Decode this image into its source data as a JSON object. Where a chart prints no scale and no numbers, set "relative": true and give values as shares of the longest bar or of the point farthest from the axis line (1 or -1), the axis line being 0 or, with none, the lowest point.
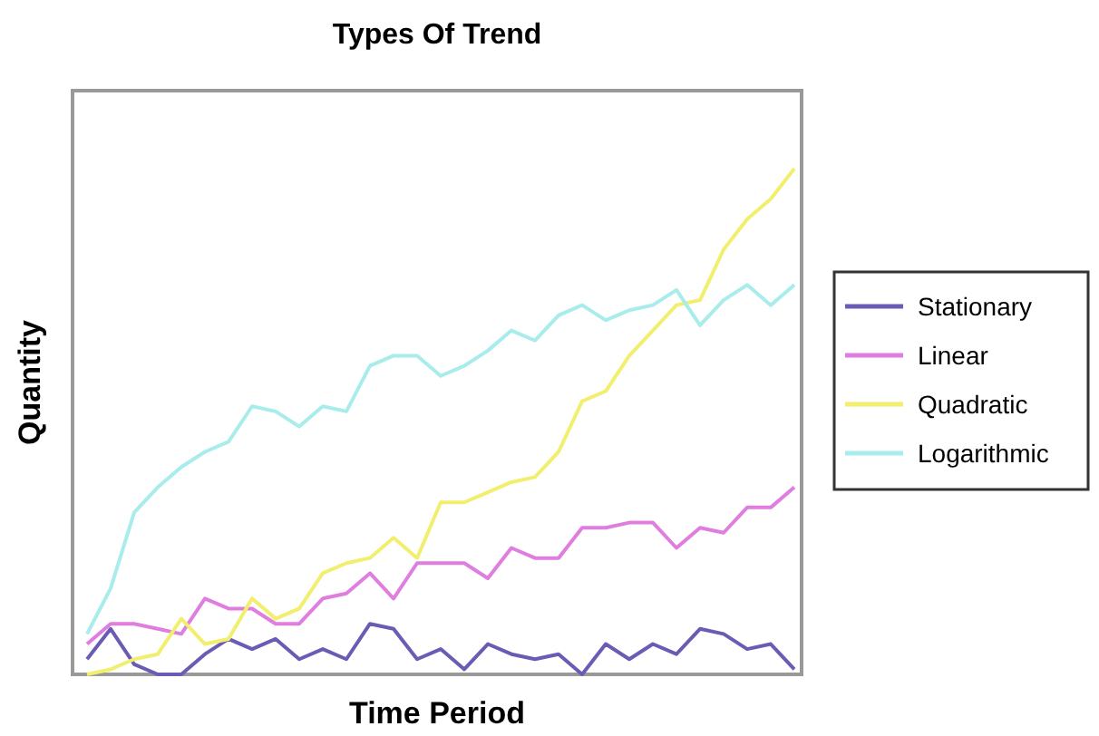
{
  "chart_data": {
    "type": "line",
    "title": "Types Of Trend",
    "xlabel": "Time Period",
    "ylabel": "Quantity",
    "relative": true,
    "legend": "right",
    "marker": "none",
    "line_style": "solid",
    "categories": [
      null,
      null,
      null,
      null,
      null,
      null,
      null,
      null,
      null,
      null,
      null,
      null,
      null,
      null,
      null,
      null,
      null,
      null,
      null,
      null,
      null,
      null,
      null,
      null,
      null,
      null,
      null,
      null,
      null,
      null,
      null
    ],
    "series": [
      {
        "name": "Stationary",
        "color": "#6b5bb5",
        "values": [
          0.03,
          0.09,
          0.02,
          0,
          0,
          0.04,
          0.07,
          0.05,
          0.07,
          0.03,
          0.05,
          0.03,
          0.1,
          0.09,
          0.03,
          0.05,
          0.01,
          0.06,
          0.04,
          0.03,
          0.04,
          0,
          0.06,
          0.03,
          0.06,
          0.04,
          0.09,
          0.08,
          0.05,
          0.06,
          0.01
        ]
      },
      {
        "name": "Linear",
        "color": "#e07ee0",
        "values": [
          0.06,
          0.1,
          0.1,
          0.09,
          0.08,
          0.15,
          0.13,
          0.13,
          0.1,
          0.1,
          0.15,
          0.16,
          0.2,
          0.15,
          0.22,
          0.22,
          0.22,
          0.19,
          0.25,
          0.23,
          0.23,
          0.29,
          0.29,
          0.3,
          0.3,
          0.25,
          0.29,
          0.28,
          0.33,
          0.33,
          0.37
        ]
      },
      {
        "name": "Quadratic",
        "color": "#f2ee6e",
        "values": [
          0,
          0.01,
          0.03,
          0.04,
          0.11,
          0.06,
          0.07,
          0.15,
          0.11,
          0.13,
          0.2,
          0.22,
          0.23,
          0.27,
          0.23,
          0.34,
          0.34,
          0.36,
          0.38,
          0.39,
          0.44,
          0.54,
          0.56,
          0.63,
          0.68,
          0.73,
          0.74,
          0.84,
          0.9,
          0.94,
          1
        ]
      },
      {
        "name": "Logarithmic",
        "color": "#a8ecec",
        "values": [
          0.08,
          0.17,
          0.32,
          0.37,
          0.41,
          0.44,
          0.46,
          0.53,
          0.52,
          0.49,
          0.53,
          0.52,
          0.61,
          0.63,
          0.63,
          0.59,
          0.61,
          0.64,
          0.68,
          0.66,
          0.71,
          0.73,
          0.7,
          0.72,
          0.73,
          0.76,
          0.69,
          0.74,
          0.77,
          0.73,
          0.77
        ]
      }
    ]
  }
}
